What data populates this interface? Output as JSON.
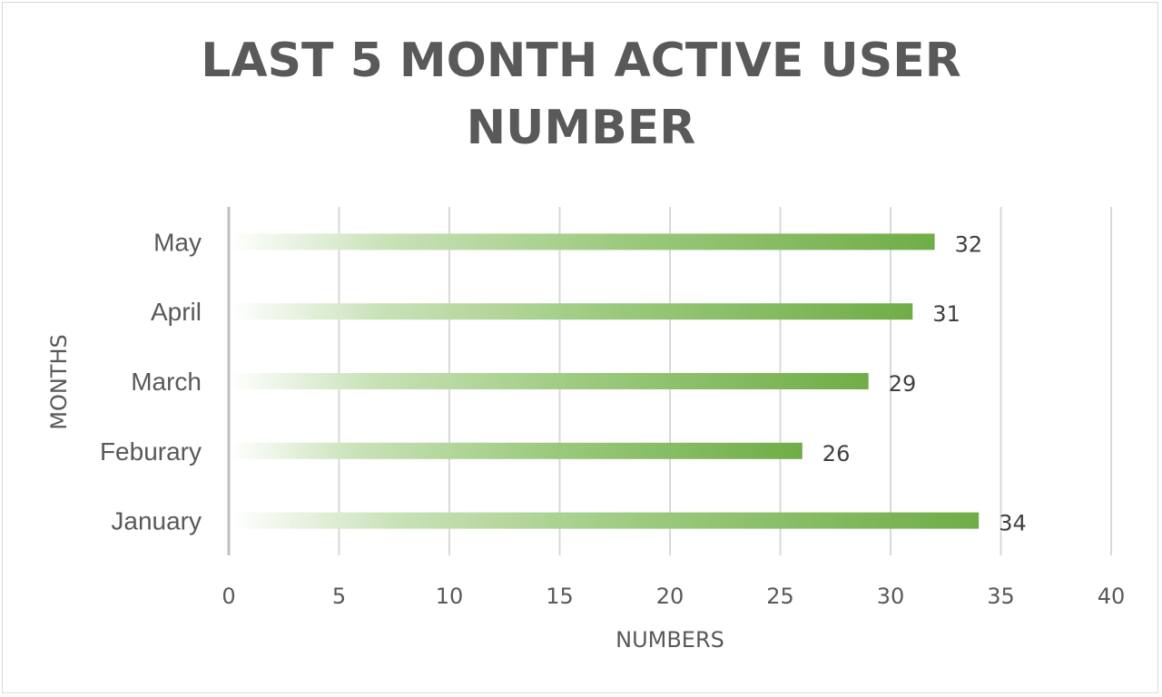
{
  "chart_data": {
    "type": "bar",
    "orientation": "horizontal",
    "title_lines": [
      "LAST 5 MONTH ACTIVE USER",
      "NUMBER"
    ],
    "xlabel": "NUMBERS",
    "ylabel": "MONTHS",
    "categories": [
      "January",
      "Feburary",
      "March",
      "April",
      "May"
    ],
    "values": [
      34,
      26,
      29,
      31,
      32
    ],
    "xlim": [
      0,
      40
    ],
    "xticks": [
      0,
      5,
      10,
      15,
      20,
      25,
      30,
      35,
      40
    ],
    "grid": true,
    "legend": "none",
    "colors": {
      "bar_end": "#70ad47",
      "bar_start": "#ffffff",
      "grid": "#d9d9d9",
      "text": "#595959"
    }
  }
}
